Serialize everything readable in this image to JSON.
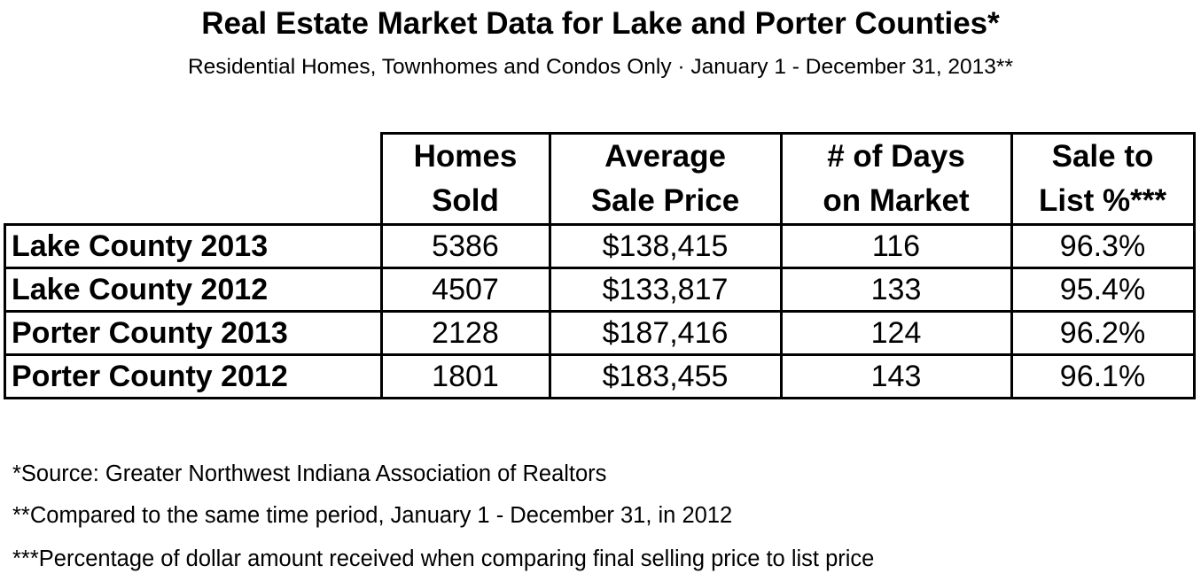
{
  "title": "Real Estate Market Data for Lake and Porter Counties*",
  "subtitle": "Residential Homes, Townhomes and Condos Only · January 1 - December 31, 2013**",
  "table": {
    "headers": [
      {
        "line1": "Homes",
        "line2": "Sold"
      },
      {
        "line1": "Average",
        "line2": "Sale Price"
      },
      {
        "line1": "# of Days",
        "line2": "on Market"
      },
      {
        "line1": "Sale to",
        "line2": "List %***"
      }
    ],
    "rows": [
      {
        "label": "Lake County 2013",
        "cells": [
          "5386",
          "$138,415",
          "116",
          "96.3%"
        ]
      },
      {
        "label": "Lake County 2012",
        "cells": [
          "4507",
          "$133,817",
          "133",
          "95.4%"
        ]
      },
      {
        "label": "Porter County 2013",
        "cells": [
          "2128",
          "$187,416",
          "124",
          "96.2%"
        ]
      },
      {
        "label": "Porter County 2012",
        "cells": [
          "1801",
          "$183,455",
          "143",
          "96.1%"
        ]
      }
    ]
  },
  "footnotes": [
    "*Source: Greater Northwest Indiana Association of Realtors",
    "**Compared to the same time period, January 1 - December 31, in 2012",
    "***Percentage of dollar amount received when comparing final selling price to list price"
  ]
}
